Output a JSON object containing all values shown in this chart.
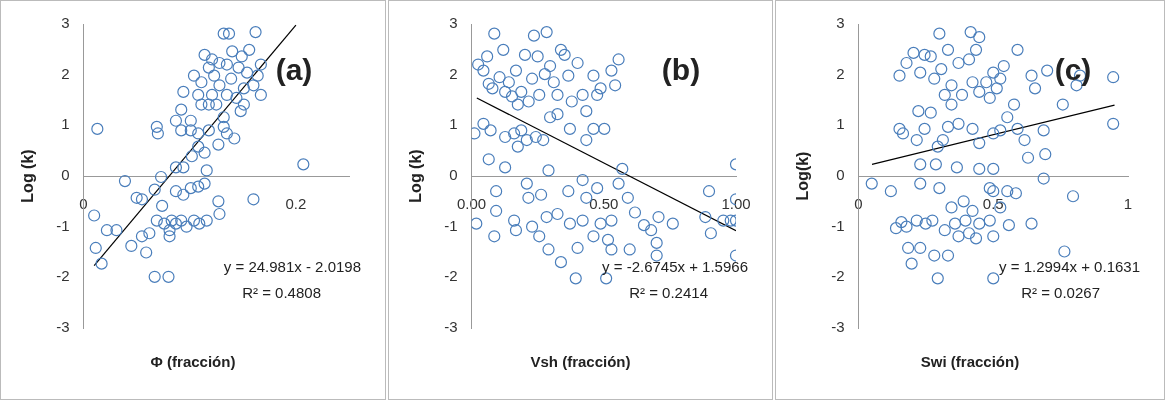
{
  "chart_data": [
    {
      "type": "scatter",
      "xlabel": "Φ (fracción)",
      "ylabel": "Log (k)",
      "xlim": [
        0,
        0.25
      ],
      "ylim": [
        -3,
        3
      ],
      "xticks": [
        0,
        0.2
      ],
      "yticks": [
        -3,
        -2,
        -1,
        0,
        1,
        2,
        3
      ],
      "annotations": [
        "(a)",
        "y = 24.981x - 2.0198",
        "R² = 0.4808"
      ],
      "series": [
        {
          "marker": "circle",
          "color": "#4a7ebb",
          "x": [
            0.013,
            0.01,
            0.0115,
            0.017,
            0.022,
            0.031,
            0.039,
            0.045,
            0.05,
            0.055,
            0.059,
            0.055,
            0.062,
            0.067,
            0.08,
            0.069,
            0.07,
            0.067,
            0.073,
            0.074,
            0.069,
            0.076,
            0.081,
            0.083,
            0.087,
            0.092,
            0.097,
            0.104,
            0.109,
            0.116,
            0.128,
            0.127,
            0.081,
            0.087,
            0.094,
            0.101,
            0.108,
            0.114,
            0.116,
            0.087,
            0.094,
            0.102,
            0.108,
            0.114,
            0.127,
            0.142,
            0.16,
            0.207,
            0.087,
            0.092,
            0.094,
            0.092,
            0.101,
            0.108,
            0.118,
            0.132,
            0.135,
            0.104,
            0.111,
            0.114,
            0.118,
            0.121,
            0.123,
            0.125,
            0.128,
            0.132,
            0.135,
            0.137,
            0.139,
            0.14,
            0.144,
            0.146,
            0.149,
            0.151,
            0.154,
            0.156,
            0.16,
            0.162,
            0.164,
            0.167,
            0.167,
            0.151,
            0.148,
            0.132,
            0.118,
            0.111,
            0.108,
            0.128,
            0.121,
            0.101,
            0.135
          ],
          "values": [
            0.93,
            -0.78,
            -1.42,
            -1.73,
            -1.07,
            -1.07,
            -0.1,
            -1.38,
            -0.43,
            -0.46,
            -1.51,
            -1.19,
            -1.13,
            -1.99,
            -1.99,
            0.97,
            0.84,
            -0.27,
            -0.02,
            -0.59,
            -0.88,
            -0.94,
            -1.07,
            -0.88,
            -0.94,
            -0.88,
            -1.0,
            -0.88,
            -0.94,
            -0.88,
            -0.75,
            -0.5,
            -1.19,
            -0.3,
            -0.37,
            -0.24,
            -0.21,
            -0.15,
            0.11,
            0.17,
            0.17,
            0.39,
            0.58,
            0.46,
            0.62,
            0.74,
            -0.46,
            0.23,
            1.09,
            1.31,
            1.66,
            0.9,
            0.9,
            0.84,
            0.9,
            0.97,
            0.84,
            1.98,
            1.85,
            2.39,
            2.14,
            1.6,
            1.98,
            1.41,
            1.79,
            2.81,
            2.2,
            2.81,
            1.92,
            2.46,
            1.54,
            2.14,
            2.36,
            1.73,
            2.04,
            2.49,
            1.79,
            2.84,
            1.98,
            2.2,
            1.6,
            1.41,
            1.28,
            1.16,
            1.41,
            1.41,
            1.6,
            2.23,
            2.3,
            1.09,
            1.6
          ]
        },
        {
          "type": "line",
          "color": "#000000",
          "x": [
            0.01,
            0.2
          ],
          "values": [
            -1.77,
            2.98
          ]
        }
      ]
    },
    {
      "type": "scatter",
      "xlabel": "Vsh (fracción)",
      "ylabel": "Log (k)",
      "xlim": [
        0,
        1
      ],
      "ylim": [
        -3,
        3
      ],
      "xticks": [
        {
          "value": 0,
          "label": "0.00"
        },
        {
          "value": 0.5,
          "label": "0.50"
        },
        {
          "value": 1,
          "label": "1.00"
        }
      ],
      "yticks": [
        -3,
        -2,
        -1,
        0,
        1,
        2,
        3
      ],
      "annotations": [
        "(b)",
        "y = -2.6745x + 1.5966",
        "R² = 0.2414"
      ],
      "series": [
        {
          "marker": "circle",
          "color": "#4a7ebb",
          "x": [
            0.086,
            0.025,
            0.045,
            0.059,
            0.065,
            0.079,
            0.106,
            0.12,
            0.127,
            0.141,
            0.153,
            0.168,
            0.175,
            0.188,
            0.202,
            0.216,
            0.229,
            0.236,
            0.25,
            0.256,
            0.284,
            0.277,
            0.297,
            0.311,
            0.325,
            0.338,
            0.352,
            0.366,
            0.401,
            0.42,
            0.434,
            0.461,
            0.475,
            0.488,
            0.529,
            0.543,
            0.556,
            0.379,
            0.325,
            0.297,
            0.011,
            0.045,
            0.065,
            0.072,
            0.127,
            0.161,
            0.188,
            0.209,
            0.175,
            0.243,
            0.271,
            0.372,
            0.434,
            0.461,
            0.502,
            0.291,
            0.127,
            0.57,
            1.0,
            0.209,
            0.093,
            0.215,
            0.263,
            0.366,
            0.42,
            0.475,
            0.556,
            0.591,
            0.898,
            1.0,
            0.018,
            0.093,
            0.086,
            0.161,
            0.168,
            0.229,
            0.256,
            0.284,
            0.291,
            0.325,
            0.338,
            0.372,
            0.401,
            0.394,
            0.42,
            0.434,
            0.461,
            0.488,
            0.509,
            0.516,
            0.529,
            0.529,
            0.598,
            0.618,
            0.652,
            0.679,
            0.7,
            0.7,
            0.707,
            0.761,
            0.884,
            0.905,
            0.952,
            0.98,
            1.0,
            1.0
          ],
          "values": [
            2.81,
            2.2,
            2.08,
            2.36,
            1.82,
            1.73,
            1.95,
            2.49,
            1.66,
            1.85,
            1.57,
            2.08,
            1.41,
            1.66,
            2.39,
            1.47,
            1.92,
            2.77,
            2.36,
            1.6,
            2.84,
            2.01,
            2.17,
            1.85,
            1.6,
            2.49,
            2.39,
            1.98,
            2.23,
            1.6,
            1.28,
            1.98,
            1.6,
            1.73,
            2.08,
            1.79,
            2.3,
            1.47,
            1.22,
            1.16,
            0.84,
            1.03,
            0.33,
            0.9,
            0.77,
            0.84,
            0.9,
            0.71,
            0.58,
            0.77,
            0.71,
            0.93,
            0.71,
            0.93,
            0.93,
            0.11,
            0.17,
            0.14,
            0.23,
            -0.15,
            -0.3,
            -0.43,
            -0.37,
            -0.3,
            -0.08,
            -0.24,
            -0.15,
            -0.43,
            -0.3,
            -0.46,
            -0.94,
            -0.69,
            -1.19,
            -0.88,
            -1.07,
            -1.0,
            -1.19,
            -0.81,
            -1.45,
            -0.75,
            -1.7,
            -0.94,
            -1.42,
            -2.02,
            -0.88,
            -0.43,
            -1.19,
            -0.94,
            -2.02,
            -1.26,
            -1.45,
            -0.88,
            -1.45,
            -0.72,
            -0.97,
            -1.07,
            -1.32,
            -1.57,
            -0.81,
            -0.94,
            -0.81,
            -1.13,
            -0.88,
            -0.88,
            -1.57,
            -0.88
          ]
        },
        {
          "type": "line",
          "color": "#000000",
          "x": [
            0.02,
            1.0
          ],
          "values": [
            1.54,
            -1.08
          ]
        }
      ]
    },
    {
      "type": "scatter",
      "xlabel": "Swi (fracción)",
      "ylabel": "Log(k)",
      "xlim": [
        0,
        1
      ],
      "ylim": [
        -3,
        3
      ],
      "xticks": [
        0,
        0.5,
        1
      ],
      "yticks": [
        -3,
        -2,
        -1,
        0,
        1,
        2,
        3
      ],
      "annotations": [
        "(c)",
        "y = 1.2994x + 0.1631",
        "R² = 0.0267"
      ],
      "series": [
        {
          "marker": "circle",
          "color": "#4a7ebb",
          "x": [
            0.049,
            0.12,
            0.139,
            0.159,
            0.178,
            0.184,
            0.197,
            0.216,
            0.229,
            0.249,
            0.274,
            0.281,
            0.294,
            0.332,
            0.32,
            0.345,
            0.358,
            0.371,
            0.39,
            0.397,
            0.41,
            0.423,
            0.436,
            0.448,
            0.487,
            0.5,
            0.5,
            0.487,
            0.526,
            0.558,
            0.552,
            0.584,
            0.642,
            0.687,
            0.764,
            0.796,
            0.229,
            0.3,
            0.5,
            0.229,
            0.287,
            0.365,
            0.448,
            0.5,
            0.629,
            0.693,
            0.152,
            0.165,
            0.216,
            0.222,
            0.245,
            0.268,
            0.294,
            0.313,
            0.332,
            0.345,
            0.371,
            0.423,
            0.448,
            0.5,
            0.526,
            0.552,
            0.59,
            0.616,
            0.687,
            0.758,
            0.945,
            0.152,
            0.178,
            0.204,
            0.229,
            0.245,
            0.268,
            0.281,
            0.3,
            0.307,
            0.332,
            0.32,
            0.345,
            0.371,
            0.384,
            0.41,
            0.416,
            0.436,
            0.448,
            0.423,
            0.448,
            0.474,
            0.487,
            0.5,
            0.513,
            0.526,
            0.539,
            0.577,
            0.59,
            0.642,
            0.655,
            0.7,
            0.809,
            0.822,
            0.945
          ],
          "values": [
            -0.15,
            -0.3,
            -1.03,
            -0.91,
            -1.0,
            -1.42,
            -1.73,
            -0.88,
            -1.42,
            -0.94,
            -0.88,
            -1.57,
            -2.02,
            -1.57,
            -1.07,
            -0.62,
            -0.94,
            -1.19,
            -0.5,
            -0.88,
            -1.13,
            -0.69,
            -1.23,
            -0.94,
            -0.24,
            -1.19,
            -2.02,
            -0.88,
            -0.62,
            -0.97,
            -0.3,
            -0.34,
            -0.94,
            -0.05,
            -1.49,
            -0.4,
            -0.15,
            -0.24,
            -0.3,
            0.23,
            0.23,
            0.17,
            0.14,
            0.14,
            0.36,
            0.43,
            0.93,
            0.84,
            0.71,
            1.28,
            0.93,
            1.25,
            0.58,
            0.71,
            0.97,
            1.41,
            1.03,
            0.93,
            0.65,
            0.84,
            0.9,
            1.16,
            0.93,
            0.71,
            0.9,
            1.41,
            1.03,
            1.98,
            2.23,
            2.43,
            2.04,
            2.39,
            2.36,
            1.92,
            2.81,
            2.11,
            2.49,
            1.6,
            1.79,
            2.23,
            1.6,
            2.3,
            2.84,
            2.49,
            2.74,
            1.85,
            1.66,
            1.85,
            1.54,
            2.04,
            1.73,
            1.92,
            2.17,
            1.41,
            2.49,
            1.98,
            1.73,
            2.08,
            1.79,
            1.98,
            1.95
          ]
        },
        {
          "type": "line",
          "color": "#000000",
          "x": [
            0.05,
            0.95
          ],
          "values": [
            0.23,
            1.4
          ]
        }
      ]
    }
  ]
}
